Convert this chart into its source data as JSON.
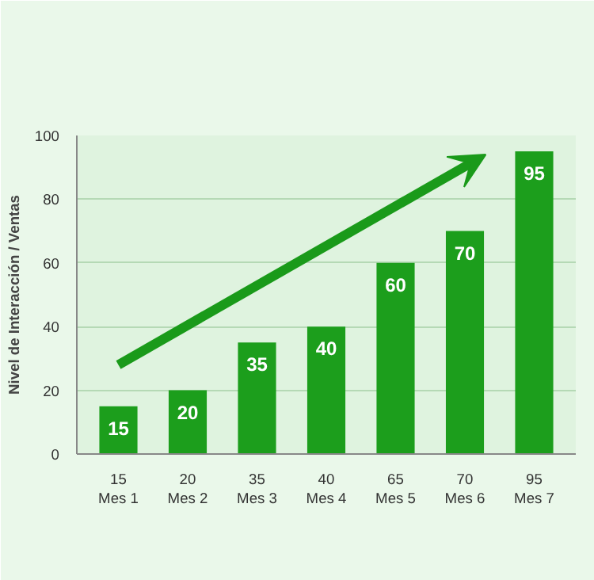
{
  "chart_data": {
    "type": "bar",
    "ylabel": "Nivel de Interacción / Ventas",
    "categories": [
      "15\nMes 1",
      "20\nMes 2",
      "35\nMes 3",
      "40\nMes 4",
      "65\nMes 5",
      "70\nMes 6",
      "95\nMes 7"
    ],
    "values": [
      15,
      20,
      35,
      40,
      60,
      70,
      95
    ],
    "color": "#1c9e1c",
    "data_labels": true,
    "ylim": [
      0,
      100
    ],
    "yticks": [
      0,
      20,
      40,
      60,
      80,
      100
    ],
    "grid": "y"
  }
}
